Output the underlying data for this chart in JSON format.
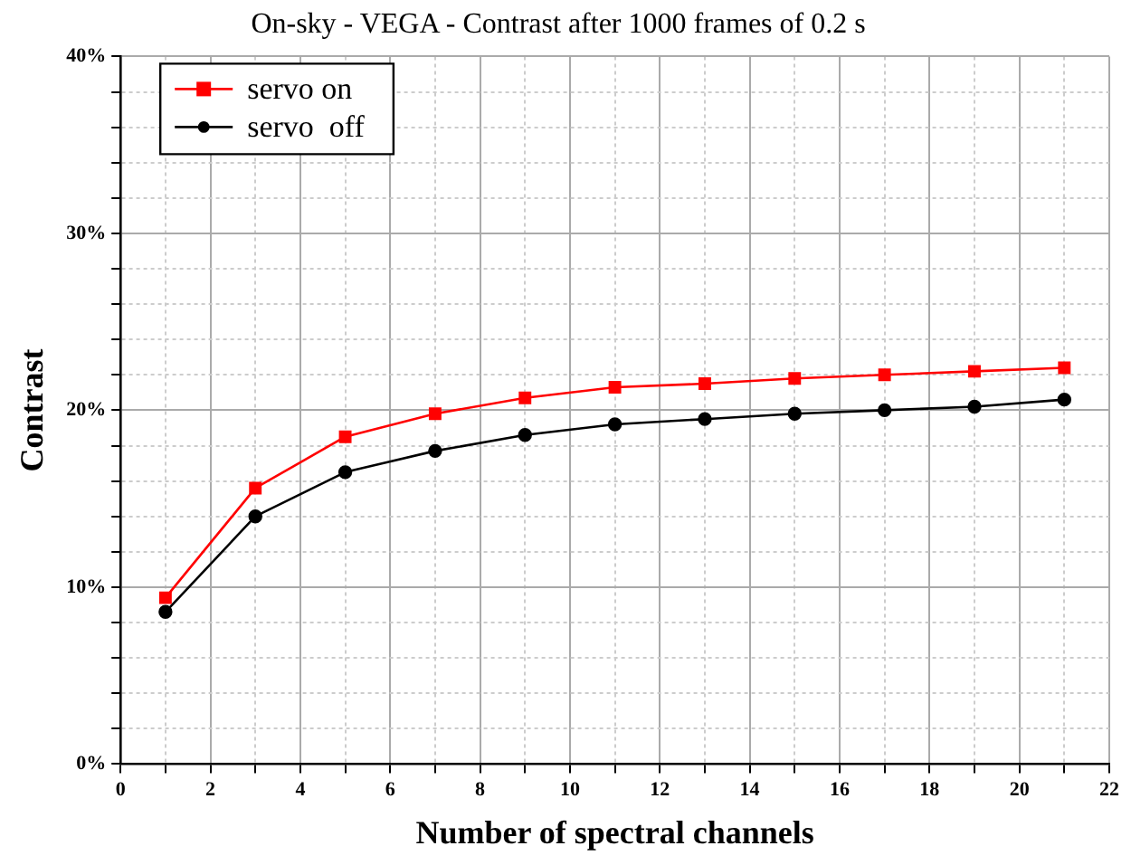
{
  "chart_data": {
    "type": "line",
    "title": "On-sky - VEGA - Contrast after 1000 frames of 0.2 s",
    "xlabel": "Number of spectral channels",
    "ylabel": "Contrast",
    "x": [
      1,
      3,
      5,
      7,
      9,
      11,
      13,
      15,
      17,
      19,
      21
    ],
    "series": [
      {
        "name": "servo on",
        "color": "#ff0000",
        "marker": "square",
        "values": [
          9.4,
          15.6,
          18.5,
          19.8,
          20.7,
          21.3,
          21.5,
          21.8,
          22.0,
          22.2,
          22.4
        ]
      },
      {
        "name": "servo  off",
        "color": "#000000",
        "marker": "circle",
        "values": [
          8.6,
          14.0,
          16.5,
          17.7,
          18.6,
          19.2,
          19.5,
          19.8,
          20.0,
          20.2,
          20.6
        ]
      }
    ],
    "xlim": [
      0,
      22
    ],
    "xticks": [
      0,
      {
        "value": 1,
        "label": null
      },
      2,
      {
        "value": 3,
        "label": null
      },
      4,
      {
        "value": 5,
        "label": null
      },
      6,
      {
        "value": 7,
        "label": null
      },
      8,
      {
        "value": 9,
        "label": null
      },
      10,
      {
        "value": 11,
        "label": null
      },
      12,
      {
        "value": 13,
        "label": null
      },
      14,
      {
        "value": 15,
        "label": null
      },
      16,
      {
        "value": 17,
        "label": null
      },
      18,
      {
        "value": 19,
        "label": null
      },
      20,
      {
        "value": 21,
        "label": null
      },
      22
    ],
    "ylim": [
      0,
      40
    ],
    "yticks": [
      {
        "value": 0,
        "label": "0%"
      },
      {
        "value": 2,
        "label": null
      },
      {
        "value": 4,
        "label": null
      },
      {
        "value": 6,
        "label": null
      },
      {
        "value": 8,
        "label": null
      },
      {
        "value": 10,
        "label": "10%"
      },
      {
        "value": 12,
        "label": null
      },
      {
        "value": 14,
        "label": null
      },
      {
        "value": 16,
        "label": null
      },
      {
        "value": 18,
        "label": null
      },
      {
        "value": 20,
        "label": "20%"
      },
      {
        "value": 22,
        "label": null
      },
      {
        "value": 24,
        "label": null
      },
      {
        "value": 26,
        "label": null
      },
      {
        "value": 28,
        "label": null
      },
      {
        "value": 30,
        "label": "30%"
      },
      {
        "value": 32,
        "label": null
      },
      {
        "value": 34,
        "label": null
      },
      {
        "value": 36,
        "label": null
      },
      {
        "value": 38,
        "label": null
      },
      {
        "value": 40,
        "label": "40%"
      }
    ],
    "grid": true,
    "legend": "top left",
    "line_style": "solid"
  }
}
